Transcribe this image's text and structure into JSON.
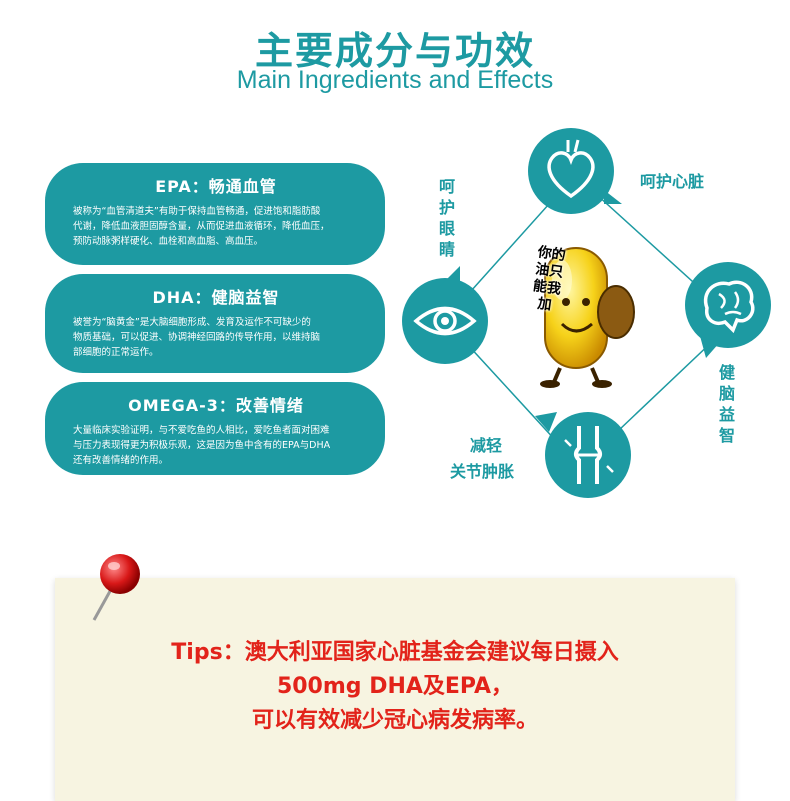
{
  "header": {
    "title_zh": "主要成分与功效",
    "title_en": "Main Ingredients and Effects"
  },
  "cards": [
    {
      "title": "EPA：畅通血管",
      "lines": [
        "被称为“血管清道夫”有助于保持血管畅通，促进饱和脂肪酸",
        "代谢，降低血液胆固醇含量，从而促进血液循环，降低血压，",
        "预防动脉粥样硬化、血栓和高血脂、高血压。"
      ]
    },
    {
      "title": "DHA：健脑益智",
      "lines": [
        "被誉为“脑黄金”是大脑细胞形成、发育及运作不可缺少的",
        "物质基础，可以促进、协调神经回路的传导作用，以维持脑",
        "部细胞的正常运作。"
      ]
    },
    {
      "title": "OMEGA-3：改善情绪",
      "lines": [
        "大量临床实验证明，与不爱吃鱼的人相比，爱吃鱼者面对困难",
        "与压力表现得更为积极乐观，这是因为鱼中含有的EPA与DHA",
        "还有改善情绪的作用。"
      ]
    }
  ],
  "effects": {
    "heart": "呵护心脏",
    "eyes": "呵护眼睛",
    "brain": "健脑益智",
    "joints_line1": "减轻",
    "joints_line2": "关节肿胀"
  },
  "icons": [
    "heart-icon",
    "eye-icon",
    "brain-icon",
    "knee-joint-icon",
    "pushpin-icon"
  ],
  "mascot": {
    "speech": "你的油只能我加"
  },
  "tips": {
    "line1": "Tips：澳大利亚国家心脏基金会建议每日摄入",
    "line2": "500mg DHA及EPA，",
    "line3": "可以有效减少冠心病发病率。"
  },
  "colors": {
    "teal": "#1d9aa2",
    "red": "#e2231a",
    "tips_bg": "#f7f4e1"
  }
}
